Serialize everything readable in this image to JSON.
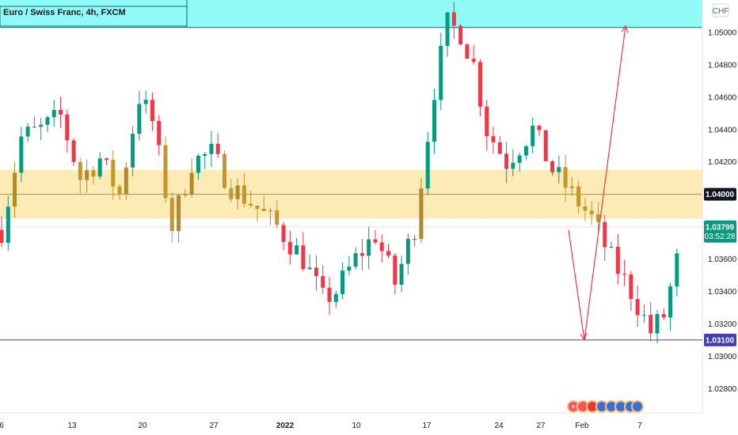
{
  "chart_data": {
    "type": "candlestick",
    "title": "Euro / Swiss Franc, 4h, FXCM",
    "currency": "CHF",
    "ylim": [
      1.0265,
      1.052
    ],
    "y_ticks": [
      "1.05000",
      "1.04800",
      "1.04600",
      "1.04400",
      "1.04200",
      "1.04000",
      "1.03800",
      "1.03600",
      "1.03400",
      "1.03200",
      "1.03000",
      "1.02800"
    ],
    "x_ticks": [
      "6",
      "13",
      "20",
      "27",
      "2022",
      "10",
      "17",
      "24",
      "27",
      "Feb",
      "7"
    ],
    "bold_x_tick": "2022",
    "price_labels": {
      "level": "1.04000",
      "current": "1.03799",
      "countdown": "03:52:28",
      "target": "1.03100"
    },
    "levels": {
      "mid_line": 1.04,
      "current": 1.03799,
      "target_line": 1.031
    },
    "zones": [
      {
        "name": "support-resistance-zone",
        "low": 1.0385,
        "high": 1.0415,
        "color": "#fde7a8"
      },
      {
        "name": "top-zone",
        "low": 1.0503,
        "high": 1.052,
        "color": "#7dfaf4"
      }
    ],
    "projection": [
      {
        "bar": 118,
        "price": 1.0378
      },
      {
        "bar": 126,
        "price": 1.031
      },
      {
        "bar": 135,
        "price": 1.0504
      }
    ],
    "colors": {
      "up": "#089981",
      "down": "#f23645",
      "zone_up": "#b08a2a",
      "zone_down": "#c3962e",
      "arrow": "#f23645",
      "target": "#3f3fb3",
      "current": "#089981"
    }
  }
}
